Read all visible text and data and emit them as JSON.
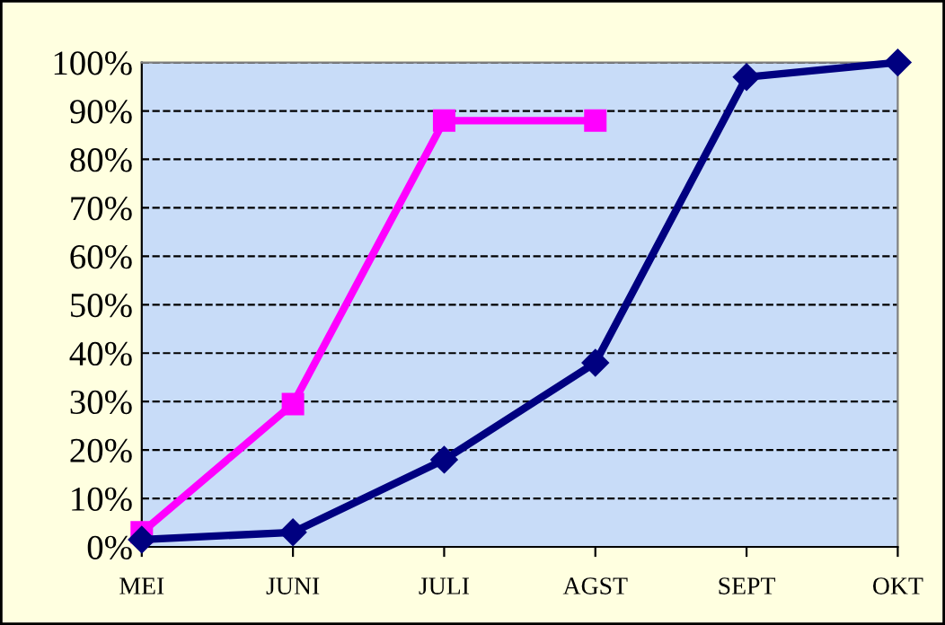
{
  "chart_data": {
    "type": "line",
    "categories": [
      "MEI",
      "JUNI",
      "JULI",
      "AGST",
      "SEPT",
      "OKT"
    ],
    "series": [
      {
        "color": "#000080",
        "marker": "diamond",
        "values": [
          1.5,
          3,
          18,
          38,
          97,
          100
        ]
      },
      {
        "color": "#ff00ff",
        "marker": "square",
        "values": [
          3,
          29.5,
          88,
          88,
          null,
          null
        ]
      }
    ],
    "ylim": [
      0,
      100
    ],
    "yticks": [
      {
        "value": 0,
        "label": "0%"
      },
      {
        "value": 10,
        "label": "10%"
      },
      {
        "value": 20,
        "label": "20%"
      },
      {
        "value": 30,
        "label": "30%"
      },
      {
        "value": 40,
        "label": "40%"
      },
      {
        "value": 50,
        "label": "50%"
      },
      {
        "value": 60,
        "label": "60%"
      },
      {
        "value": 70,
        "label": "70%"
      },
      {
        "value": 80,
        "label": "80%"
      },
      {
        "value": 90,
        "label": "90%"
      },
      {
        "value": 100,
        "label": "100%"
      }
    ],
    "grid": "y",
    "line_style": "solid",
    "legend": false
  }
}
